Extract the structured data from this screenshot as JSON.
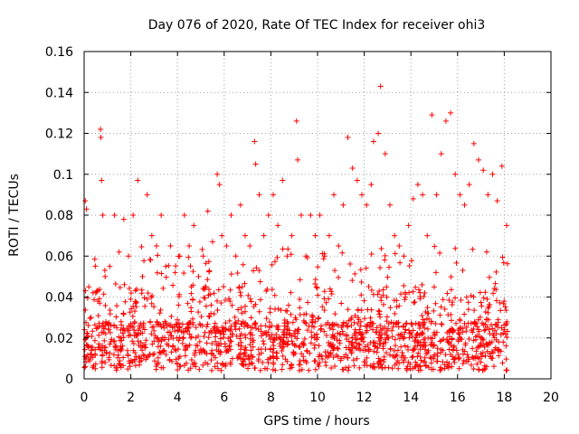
{
  "chart_data": {
    "type": "scatter",
    "title": "Day 076 of 2020, Rate Of TEC Index for receiver ohi3",
    "xlabel": "GPS time / hours",
    "ylabel": "ROTI / TECUs",
    "xlim": [
      0,
      20
    ],
    "ylim": [
      0,
      0.16
    ],
    "x_ticks": [
      "0",
      "2",
      "4",
      "6",
      "8",
      "10",
      "12",
      "14",
      "16",
      "18",
      "20"
    ],
    "y_ticks": [
      "0",
      "0.02",
      "0.04",
      "0.06",
      "0.08",
      "0.1",
      "0.12",
      "0.14",
      "0.16"
    ],
    "grid": true,
    "legend": "none",
    "marker": "plus",
    "color": "#ff0000",
    "series": [
      {
        "x": [
          0.05,
          0.1,
          0.2,
          0.3,
          0.5,
          0.7,
          0.72,
          0.75,
          0.8,
          0.9,
          1.1,
          1.3,
          1.5,
          1.7,
          1.9,
          2.1,
          2.3,
          2.5,
          2.7,
          2.9,
          3.1,
          3.3,
          3.5,
          3.7,
          3.9,
          4.1,
          4.3,
          4.5,
          4.7,
          4.9,
          5.1,
          5.3,
          5.5,
          5.7,
          5.8,
          5.9,
          6.1,
          6.3,
          6.5,
          6.7,
          6.9,
          7.1,
          7.3,
          7.35,
          7.5,
          7.7,
          7.9,
          8.1,
          8.3,
          8.5,
          8.7,
          8.9,
          9.1,
          9.15,
          9.3,
          9.5,
          9.7,
          9.9,
          10.1,
          10.3,
          10.5,
          10.7,
          10.9,
          11.1,
          11.3,
          11.5,
          11.7,
          11.9,
          12.1,
          12.3,
          12.4,
          12.6,
          12.7,
          12.9,
          13.1,
          13.3,
          13.5,
          13.7,
          13.9,
          14.1,
          14.3,
          14.5,
          14.7,
          14.9,
          15.1,
          15.3,
          15.5,
          15.7,
          15.9,
          16.1,
          16.3,
          16.5,
          16.7,
          16.9,
          17.1,
          17.3,
          17.5,
          17.7,
          17.9,
          18.1
        ],
        "y": [
          0.087,
          0.083,
          0.045,
          0.03,
          0.042,
          0.122,
          0.118,
          0.097,
          0.08,
          0.05,
          0.055,
          0.08,
          0.062,
          0.078,
          0.06,
          0.08,
          0.097,
          0.05,
          0.09,
          0.07,
          0.065,
          0.08,
          0.055,
          0.065,
          0.052,
          0.06,
          0.08,
          0.065,
          0.075,
          0.05,
          0.06,
          0.082,
          0.067,
          0.1,
          0.095,
          0.07,
          0.065,
          0.08,
          0.06,
          0.085,
          0.07,
          0.065,
          0.116,
          0.105,
          0.09,
          0.07,
          0.08,
          0.09,
          0.075,
          0.097,
          0.06,
          0.07,
          0.126,
          0.107,
          0.08,
          0.06,
          0.08,
          0.07,
          0.08,
          0.06,
          0.07,
          0.09,
          0.065,
          0.085,
          0.118,
          0.103,
          0.097,
          0.09,
          0.085,
          0.095,
          0.116,
          0.12,
          0.143,
          0.11,
          0.085,
          0.07,
          0.065,
          0.06,
          0.075,
          0.088,
          0.095,
          0.09,
          0.07,
          0.129,
          0.09,
          0.11,
          0.126,
          0.13,
          0.1,
          0.09,
          0.085,
          0.095,
          0.115,
          0.107,
          0.102,
          0.09,
          0.1,
          0.087,
          0.104,
          0.075
        ]
      }
    ]
  }
}
